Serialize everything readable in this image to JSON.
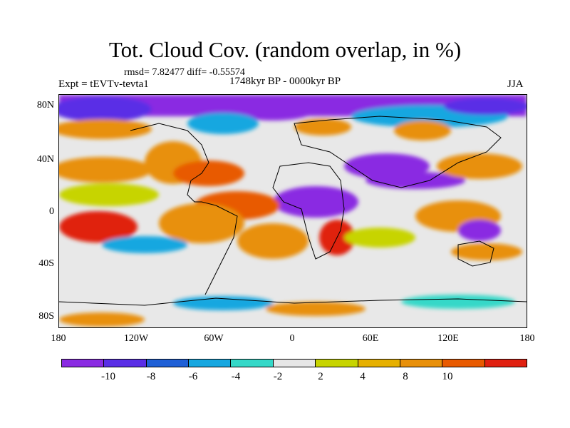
{
  "title": "Tot. Cloud Cov. (random overlap, in %)",
  "stats": "rmsd= 7.82477  diff= -0.55574",
  "expt": "Expt = tEVTv-tevta1",
  "period": "1748kyr BP - 0000kyr BP",
  "season": "JJA",
  "y_ticks": [
    "80N",
    "40N",
    "0",
    "40S",
    "80S"
  ],
  "x_ticks": [
    "180",
    "120W",
    "60W",
    "0",
    "60E",
    "120E",
    "180"
  ],
  "colorbar": {
    "colors": [
      "#8a2be2",
      "#5a2ee6",
      "#1e5fd6",
      "#16a7e0",
      "#35d8c8",
      "#e6e6e6",
      "#c7d400",
      "#e6b000",
      "#e8900a",
      "#e85a00",
      "#e02010"
    ],
    "labels": [
      "-10",
      "-8",
      "-6",
      "-4",
      "-2",
      "2",
      "4",
      "8",
      "10"
    ]
  }
}
